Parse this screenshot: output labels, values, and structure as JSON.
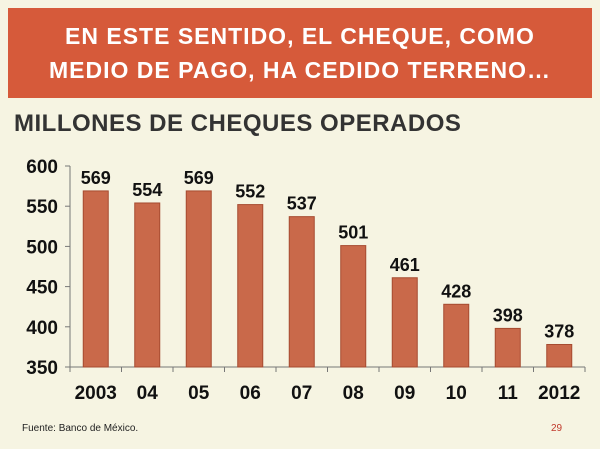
{
  "banner": {
    "line1": "EN ESTE SENTIDO, EL CHEQUE, COMO",
    "line2": "MEDIO DE PAGO, HA CEDIDO TERRENO…"
  },
  "footer": {
    "source": "Fuente: Banco de México.",
    "page_number": "29"
  },
  "colors": {
    "bar": "#c9694a",
    "bar_edge": "#a64b30",
    "banner": "#d65a3a",
    "background": "#f6f4e2"
  },
  "chart_data": {
    "type": "bar",
    "title": "MILLONES DE CHEQUES OPERADOS",
    "xlabel": "",
    "ylabel": "",
    "categories": [
      "2003",
      "04",
      "05",
      "06",
      "07",
      "08",
      "09",
      "10",
      "11",
      "2012"
    ],
    "values": [
      569,
      554,
      569,
      552,
      537,
      501,
      461,
      428,
      398,
      378
    ],
    "ylim": [
      350,
      600
    ],
    "yticks": [
      350,
      400,
      450,
      500,
      550,
      600
    ],
    "data_labels": true,
    "grid": false,
    "legend": "none"
  }
}
